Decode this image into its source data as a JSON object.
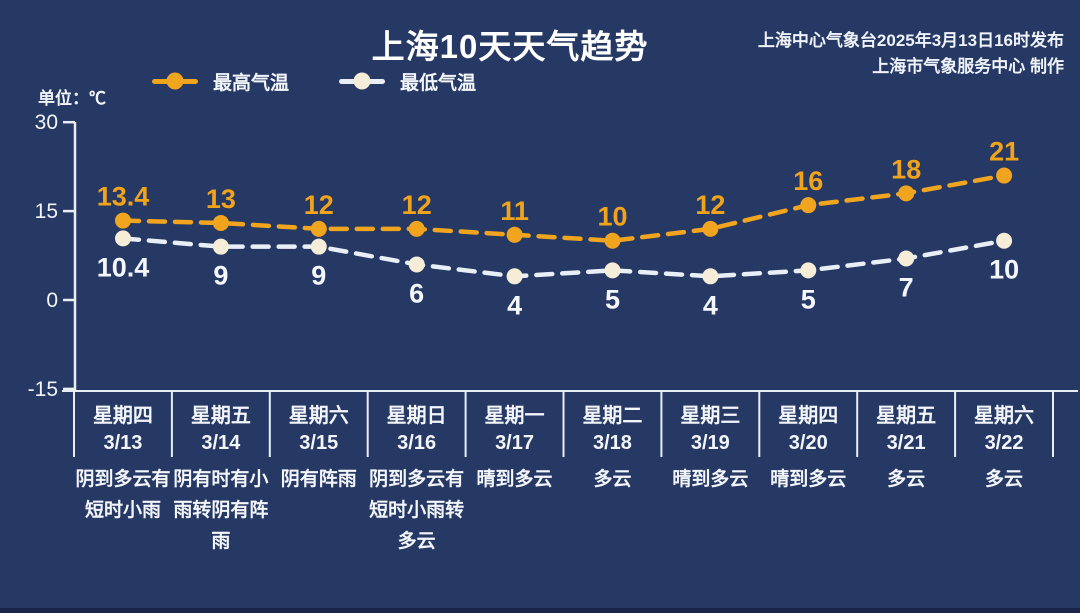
{
  "header": {
    "title": "上海10天天气趋势",
    "attribution_line1": "上海中心气象台2025年3月13日16时发布",
    "attribution_line2": "上海市气象服务中心 制作"
  },
  "unit_label": "单位：℃",
  "colors": {
    "background": "#263864",
    "axis_line": "#e9eef5",
    "high_series": "#f1a51f",
    "high_label": "#f0a41c",
    "low_series_line": "#e9eff7",
    "low_series_marker": "#f6edd8",
    "low_label": "#f4f7fb"
  },
  "chart_data": {
    "type": "line",
    "title": "上海10天天气趋势",
    "unit": "℃",
    "ylim": [
      -15,
      30
    ],
    "yticks": [
      30,
      15,
      0,
      -15
    ],
    "grid": false,
    "legend_position": "top-left",
    "line_style": "dashed",
    "point_labels_shown": true,
    "categories": [
      {
        "day": "星期四",
        "date": "3/13",
        "weather": "阴到多云有短时小雨"
      },
      {
        "day": "星期五",
        "date": "3/14",
        "weather": "阴有时有小雨转阴有阵雨"
      },
      {
        "day": "星期六",
        "date": "3/15",
        "weather": "阴有阵雨"
      },
      {
        "day": "星期日",
        "date": "3/16",
        "weather": "阴到多云有短时小雨转多云"
      },
      {
        "day": "星期一",
        "date": "3/17",
        "weather": "晴到多云"
      },
      {
        "day": "星期二",
        "date": "3/18",
        "weather": "多云"
      },
      {
        "day": "星期三",
        "date": "3/19",
        "weather": "晴到多云"
      },
      {
        "day": "星期四",
        "date": "3/20",
        "weather": "晴到多云"
      },
      {
        "day": "星期五",
        "date": "3/21",
        "weather": "多云"
      },
      {
        "day": "星期六",
        "date": "3/22",
        "weather": "多云"
      }
    ],
    "series": [
      {
        "name": "最高气温",
        "color": "#f1a51f",
        "marker_color": "#f1a51f",
        "label_color": "#f0a41c",
        "values": [
          13.4,
          13,
          12,
          12,
          11,
          10,
          12,
          16,
          18,
          21
        ]
      },
      {
        "name": "最低气温",
        "color": "#e9eff7",
        "marker_color": "#f6edd8",
        "label_color": "#f4f7fb",
        "values": [
          10.4,
          9,
          9,
          6,
          4,
          5,
          4,
          5,
          7,
          10
        ]
      }
    ]
  }
}
